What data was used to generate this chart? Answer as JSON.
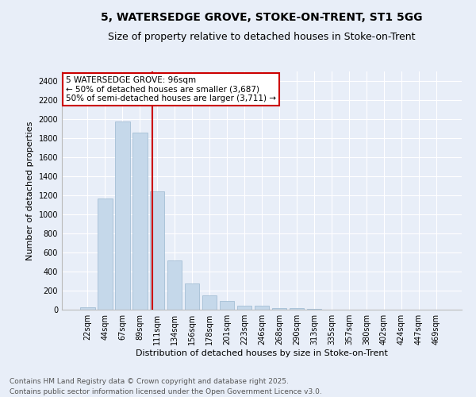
{
  "title1": "5, WATERSEDGE GROVE, STOKE-ON-TRENT, ST1 5GG",
  "title2": "Size of property relative to detached houses in Stoke-on-Trent",
  "xlabel": "Distribution of detached houses by size in Stoke-on-Trent",
  "ylabel": "Number of detached properties",
  "bar_color": "#c5d8ea",
  "bar_edgecolor": "#9ab8d0",
  "background_color": "#e8eef8",
  "grid_color": "#ffffff",
  "bins": [
    "22sqm",
    "44sqm",
    "67sqm",
    "89sqm",
    "111sqm",
    "134sqm",
    "156sqm",
    "178sqm",
    "201sqm",
    "223sqm",
    "246sqm",
    "268sqm",
    "290sqm",
    "313sqm",
    "335sqm",
    "357sqm",
    "380sqm",
    "402sqm",
    "424sqm",
    "447sqm",
    "469sqm"
  ],
  "values": [
    25,
    1165,
    1975,
    1860,
    1240,
    515,
    275,
    150,
    90,
    45,
    45,
    18,
    15,
    5,
    3,
    2,
    2,
    1,
    1,
    1,
    0
  ],
  "vline_color": "#cc0000",
  "annotation_text": "5 WATERSEDGE GROVE: 96sqm\n← 50% of detached houses are smaller (3,687)\n50% of semi-detached houses are larger (3,711) →",
  "annotation_box_color": "#ffffff",
  "annotation_box_edgecolor": "#cc0000",
  "ylim": [
    0,
    2500
  ],
  "yticks": [
    0,
    200,
    400,
    600,
    800,
    1000,
    1200,
    1400,
    1600,
    1800,
    2000,
    2200,
    2400
  ],
  "footer1": "Contains HM Land Registry data © Crown copyright and database right 2025.",
  "footer2": "Contains public sector information licensed under the Open Government Licence v3.0.",
  "title_fontsize": 10,
  "subtitle_fontsize": 9,
  "label_fontsize": 8,
  "tick_fontsize": 7,
  "footer_fontsize": 6.5,
  "annotation_fontsize": 7.5
}
